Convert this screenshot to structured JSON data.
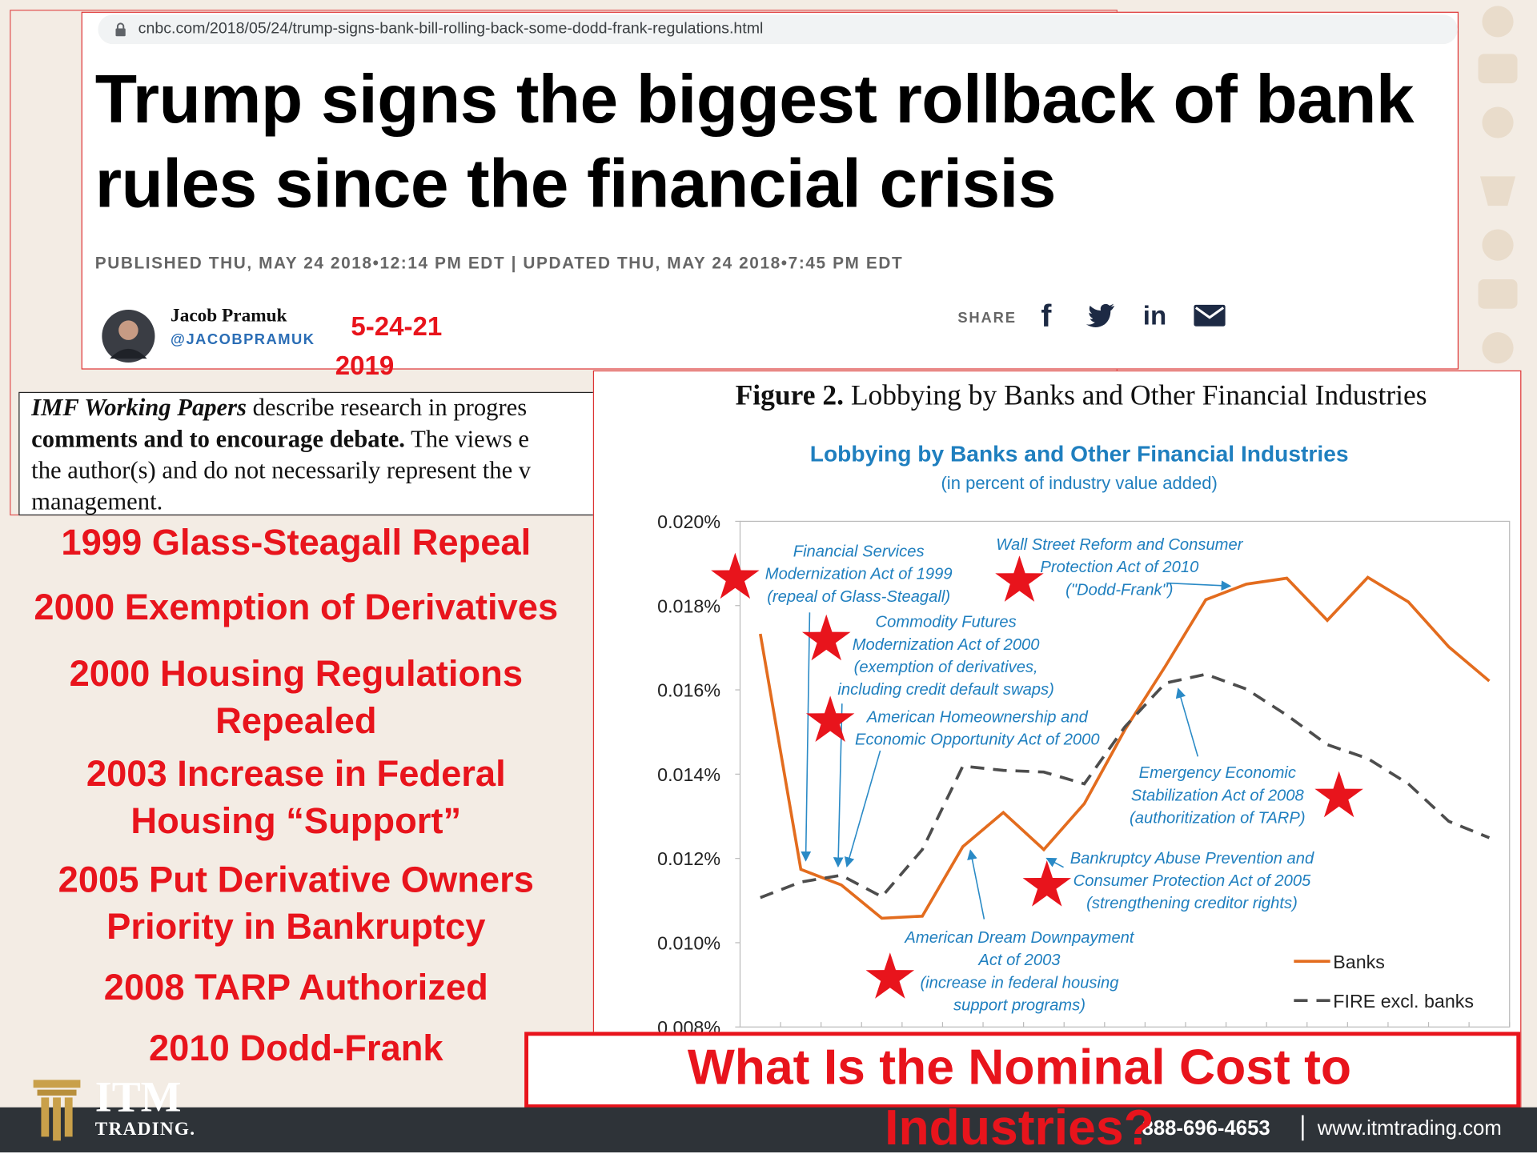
{
  "article": {
    "url": "cnbc.com/2018/05/24/trump-signs-bank-bill-rolling-back-some-dodd-frank-regulations.html",
    "headline": "Trump signs the biggest rollback of bank rules since the financial crisis",
    "dateline": "PUBLISHED THU, MAY 24 2018•12:14 PM EDT | UPDATED THU, MAY 24 2018•7:45 PM EDT",
    "author": "Jacob Pramuk",
    "handle": "@JACOBPRAMUK",
    "note_date": "5-24-21",
    "note_year": "2019",
    "share": "SHARE",
    "share_icons": [
      "f",
      "in"
    ]
  },
  "imf": {
    "lines": [
      [
        "IMF Working Papers",
        " describe research in progres"
      ],
      [
        "comments and to encourage debate.",
        " The views e"
      ],
      [
        "",
        "the author(s) and do not necessarily represent the v"
      ],
      [
        "",
        "management."
      ]
    ]
  },
  "timeline": [
    "1999 Glass-Steagall Repeal",
    "2000 Exemption of Derivatives",
    "2000 Housing Regulations Repealed",
    "2003 Increase in Federal Housing “Support”",
    "2005 Put Derivative Owners Priority in Bankruptcy",
    "2008 TARP Authorized",
    "2010 Dodd-Frank"
  ],
  "question": "What Is the Nominal Cost to Industries?",
  "footer": {
    "logo_top": "ITM",
    "logo_bottom": "TRADING.",
    "phone": "888-696-4653",
    "website": "www.itmtrading.com"
  },
  "chart_data": {
    "type": "line",
    "figure_label": "Figure 2.",
    "figure_title": "Lobbying by Banks and Other Financial Industries",
    "title": "Lobbying by Banks and Other Financial Industries",
    "subtitle": "(in percent of industry value added)",
    "categories": [
      null,
      null,
      null,
      null,
      null,
      null,
      null,
      null,
      null,
      null,
      null,
      null,
      null,
      null,
      null,
      null,
      null,
      null,
      null
    ],
    "series": [
      {
        "name": "Banks",
        "color": "#e36c1e",
        "line_style": "solid",
        "values": [
          0.01733,
          0.01174,
          0.01137,
          0.01058,
          0.01063,
          0.01228,
          0.01309,
          0.01221,
          0.0133,
          0.01505,
          0.01656,
          0.01814,
          0.01851,
          0.01865,
          0.01765,
          0.01867,
          0.01809,
          0.01702,
          0.01621
        ]
      },
      {
        "name": "FIRE excl. banks",
        "color": "#4d4d4d",
        "line_style": "dashed",
        "values": [
          0.01107,
          0.01144,
          0.0116,
          0.01109,
          0.01221,
          0.01419,
          0.01409,
          0.01405,
          0.01377,
          0.01512,
          0.01616,
          0.01637,
          0.01602,
          0.0154,
          0.0147,
          0.01437,
          0.01377,
          0.01288,
          0.01249
        ]
      }
    ],
    "ylim": [
      0.008,
      0.02
    ],
    "yticks": [
      {
        "value": 0.008,
        "label": "0.008%"
      },
      {
        "value": 0.01,
        "label": "0.010%"
      },
      {
        "value": 0.012,
        "label": "0.012%"
      },
      {
        "value": 0.014,
        "label": "0.014%"
      },
      {
        "value": 0.016,
        "label": "0.016%"
      },
      {
        "value": 0.018,
        "label": "0.018%"
      },
      {
        "value": 0.02,
        "label": "0.020%"
      }
    ],
    "grid": false,
    "legend": "lower right",
    "annotations": [
      [
        "Financial Services",
        "Modernization Act of 1999",
        "(repeal of Glass-Steagall)"
      ],
      [
        "Wall Street Reform and Consumer",
        "Protection Act of 2010",
        "(\"Dodd-Frank\")"
      ],
      [
        "Commodity Futures",
        "Modernization Act of 2000",
        "(exemption of derivatives,",
        "including credit default swaps)"
      ],
      [
        "American Homeownership and",
        "Economic Opportunity Act of 2000"
      ],
      [
        "Emergency Economic",
        "Stabilization Act of 2008",
        "(authoritization of TARP)"
      ],
      [
        "Bankruptcy Abuse Prevention and",
        "Consumer Protection Act of 2005",
        "(strengthening creditor rights)"
      ],
      [
        "American Dream Downpayment",
        "Act of 2003",
        "(increase in federal housing",
        "support programs)"
      ]
    ]
  }
}
